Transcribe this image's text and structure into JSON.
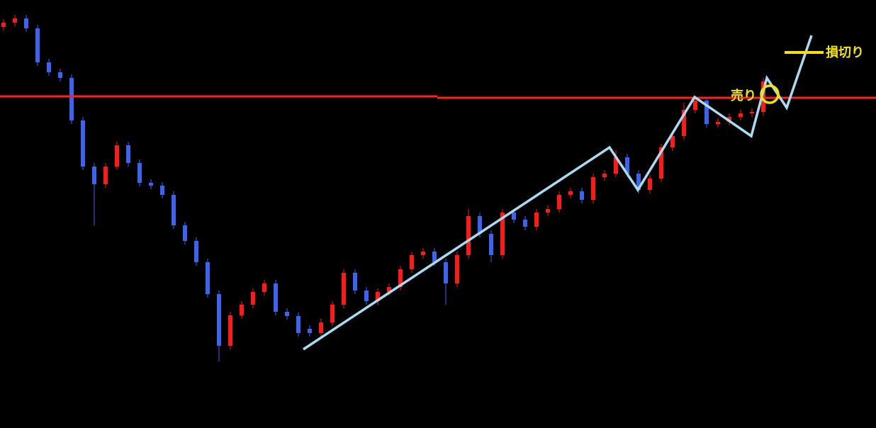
{
  "chart_data": {
    "type": "candlestick",
    "open": [
      566,
      572,
      578,
      564,
      516,
      502,
      494,
      434,
      369,
      344,
      369,
      399,
      374,
      346,
      342,
      329,
      286,
      264,
      234,
      189,
      116,
      159,
      174,
      192,
      204,
      164,
      158,
      140,
      134,
      149,
      174,
      219,
      194,
      179,
      192,
      199,
      224,
      244,
      249,
      234,
      204,
      244,
      299,
      274,
      244,
      304,
      294,
      284,
      304,
      309,
      329,
      334,
      322,
      354,
      359,
      382,
      359,
      336,
      352,
      396,
      412,
      449,
      462,
      429,
      432,
      439,
      444,
      446
    ],
    "high": [
      577,
      583,
      583,
      569,
      521,
      507,
      499,
      439,
      374,
      374,
      404,
      404,
      379,
      351,
      347,
      334,
      291,
      269,
      239,
      194,
      164,
      179,
      197,
      209,
      209,
      169,
      163,
      145,
      154,
      179,
      224,
      224,
      199,
      197,
      204,
      229,
      249,
      254,
      254,
      239,
      249,
      309,
      304,
      279,
      309,
      309,
      299,
      309,
      314,
      334,
      339,
      339,
      359,
      364,
      392,
      387,
      364,
      357,
      401,
      417,
      459,
      469,
      467,
      437,
      444,
      449,
      451,
      494
    ],
    "low": [
      561,
      567,
      559,
      511,
      497,
      489,
      429,
      364,
      286,
      339,
      364,
      369,
      341,
      337,
      324,
      281,
      259,
      229,
      184,
      94,
      111,
      154,
      169,
      187,
      159,
      153,
      129,
      129,
      129,
      144,
      169,
      189,
      174,
      174,
      187,
      194,
      219,
      239,
      229,
      174,
      199,
      239,
      269,
      234,
      239,
      289,
      279,
      279,
      299,
      304,
      324,
      317,
      317,
      349,
      354,
      354,
      331,
      331,
      347,
      391,
      407,
      444,
      424,
      424,
      427,
      434,
      439,
      441
    ],
    "close": [
      572,
      578,
      564,
      516,
      502,
      494,
      434,
      369,
      344,
      369,
      399,
      374,
      346,
      342,
      329,
      286,
      264,
      234,
      189,
      116,
      159,
      174,
      192,
      204,
      164,
      158,
      134,
      134,
      149,
      174,
      219,
      194,
      179,
      192,
      199,
      224,
      244,
      249,
      234,
      204,
      244,
      299,
      274,
      244,
      304,
      294,
      284,
      304,
      309,
      329,
      334,
      322,
      354,
      359,
      382,
      359,
      336,
      352,
      396,
      412,
      449,
      462,
      429,
      432,
      439,
      444,
      446,
      489
    ],
    "up_color": "#ff1a1a",
    "down_color": "#3d63f0",
    "ylim": [
      0,
      604
    ],
    "annotations": {
      "sell": "売り",
      "stop_loss": "損切り"
    }
  }
}
